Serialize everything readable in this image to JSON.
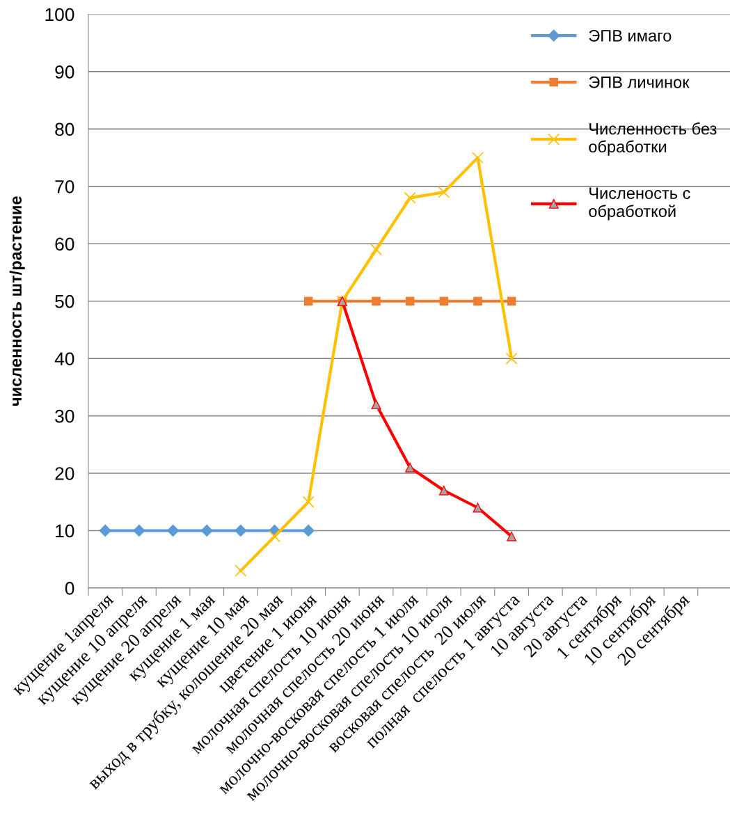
{
  "chart_data": {
    "type": "line",
    "ylabel": "численность шт/растение",
    "categories": [
      "кущение 1апреля",
      "кущение 10 апреля",
      "кущение 20 апреля",
      "кущение 1 мая",
      "кущение 10 мая",
      "выход в трубку, колошение 20 мая",
      "цветение 1 июня",
      "молочная спелость 10 июня",
      "молочная спелость 20 июня",
      "молочно-восковая спелость 1 июля",
      "молочно-восковая спелость 10 июля",
      "восковая спелость  20 июля",
      "полная  спелость 1 августа",
      "10 августа",
      "20 августа",
      "1 сентября",
      "10 сентября",
      "20 сентября"
    ],
    "series": [
      {
        "name": "ЭПВ имаго",
        "color": "#5b9bd5",
        "marker": "diamond",
        "values": [
          10,
          10,
          10,
          10,
          10,
          10,
          10,
          null,
          null,
          null,
          null,
          null,
          null,
          null,
          null,
          null,
          null,
          null
        ]
      },
      {
        "name": "ЭПВ личинок",
        "color": "#ed7d31",
        "marker": "square",
        "values": [
          null,
          null,
          null,
          null,
          null,
          null,
          50,
          50,
          50,
          50,
          50,
          50,
          50,
          null,
          null,
          null,
          null,
          null
        ]
      },
      {
        "name": "Численность без\nобработки",
        "color": "#ffc000",
        "marker": "cross",
        "values": [
          null,
          null,
          null,
          null,
          3,
          9,
          15,
          50,
          59,
          68,
          69,
          75,
          40,
          null,
          null,
          null,
          null,
          null
        ]
      },
      {
        "name": "Численость с\nобработкой",
        "color": "#ff0000",
        "marker": "triangle",
        "values": [
          null,
          null,
          null,
          null,
          null,
          null,
          null,
          50,
          32,
          21,
          17,
          14,
          9,
          null,
          null,
          null,
          null,
          null
        ]
      }
    ],
    "ylim": [
      0,
      100
    ],
    "yticks": [
      0,
      10,
      20,
      30,
      40,
      50,
      60,
      70,
      80,
      90,
      100
    ],
    "grid": "y",
    "legend": "top right",
    "line_style": "solid"
  }
}
